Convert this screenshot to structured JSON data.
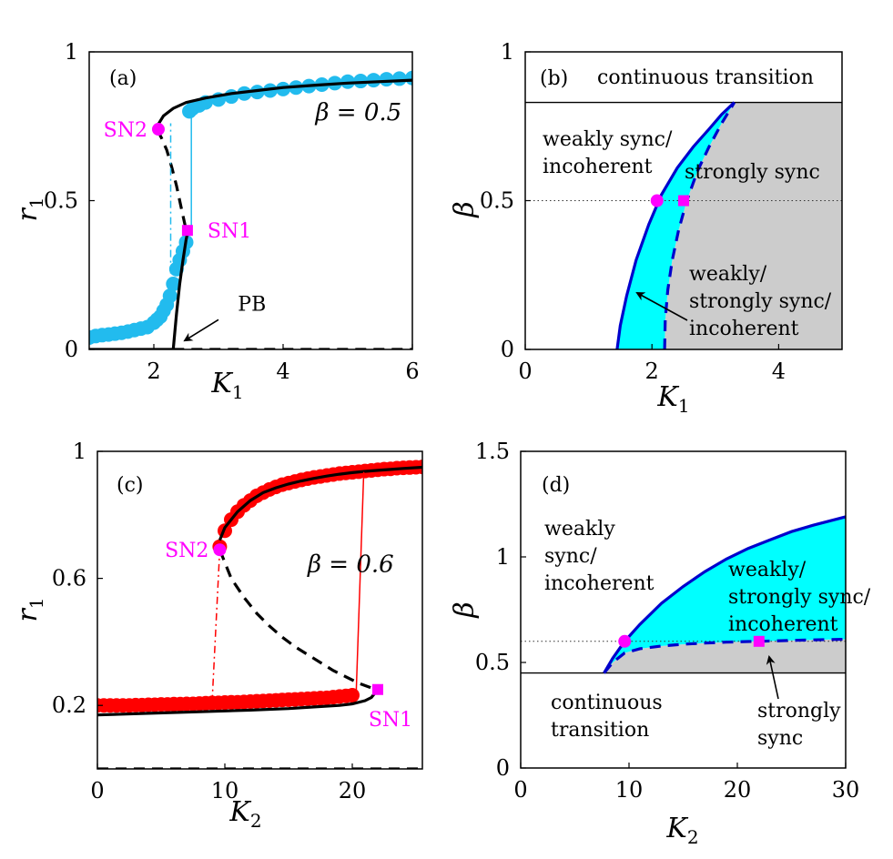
{
  "colors": {
    "cyan": "#22bbee",
    "cyan_fill": "#00ffff",
    "red": "#ff0000",
    "magenta": "#ff00ff",
    "blue": "#0000cc",
    "gray": "#cccccc",
    "black": "#000000"
  },
  "chart_data": [
    {
      "id": "a",
      "type": "line",
      "panel_label": "(a)",
      "xlabel": "K",
      "xlabel_sub": "1",
      "ylabel": "r",
      "ylabel_sub": "1",
      "xlim": [
        1,
        6
      ],
      "ylim": [
        0,
        1
      ],
      "xticks": [
        {
          "v": 2,
          "t": "2"
        },
        {
          "v": 4,
          "t": "4"
        },
        {
          "v": 6,
          "t": "6"
        }
      ],
      "yticks": [
        {
          "v": 0,
          "t": "0"
        },
        {
          "v": 0.5,
          "t": "0.5"
        },
        {
          "v": 1,
          "t": "1"
        }
      ],
      "annotation": "β = 0.5",
      "annotation_pos": [
        4.5,
        0.77
      ],
      "series": [
        {
          "name": "stable upper branch",
          "style": "solid",
          "x": [
            2.05,
            2.15,
            2.3,
            2.5,
            2.8,
            3.2,
            3.6,
            4.0,
            4.5,
            5.0,
            5.5,
            6.0
          ],
          "y": [
            0.75,
            0.785,
            0.81,
            0.83,
            0.845,
            0.86,
            0.87,
            0.88,
            0.888,
            0.895,
            0.9,
            0.905
          ]
        },
        {
          "name": "unstable middle branch",
          "style": "dashed",
          "x": [
            2.05,
            2.12,
            2.2,
            2.28,
            2.35,
            2.42,
            2.47,
            2.5
          ],
          "y": [
            0.74,
            0.71,
            0.67,
            0.61,
            0.55,
            0.48,
            0.43,
            0.4
          ]
        },
        {
          "name": "stable lower partial branch",
          "style": "solid",
          "x": [
            2.3,
            2.35,
            2.4,
            2.45,
            2.5,
            2.53,
            2.55
          ],
          "y": [
            0.0,
            0.12,
            0.22,
            0.3,
            0.37,
            0.4,
            0.4
          ]
        },
        {
          "name": "incoherent unstable",
          "style": "dashed",
          "x": [
            2.3,
            6.0
          ],
          "y": [
            0.0,
            0.0
          ]
        },
        {
          "name": "incoherent stable",
          "style": "solid",
          "x": [
            1.0,
            2.3
          ],
          "y": [
            0.0,
            0.0
          ]
        },
        {
          "name": "simulation forward",
          "style": "markers",
          "color": "cyan",
          "x": [
            1.0,
            1.1,
            1.2,
            1.3,
            1.4,
            1.5,
            1.6,
            1.7,
            1.8,
            1.9,
            2.0,
            2.05,
            2.1,
            2.15,
            2.2,
            2.25,
            2.3,
            2.35,
            2.4,
            2.45,
            2.5,
            2.55,
            2.6,
            2.7,
            2.8,
            3.0,
            3.2,
            3.4,
            3.6,
            3.8,
            4.0,
            4.2,
            4.4,
            4.6,
            4.8,
            5.0,
            5.2,
            5.4,
            5.6,
            5.8,
            6.0
          ],
          "y": [
            0.04,
            0.045,
            0.048,
            0.05,
            0.053,
            0.056,
            0.06,
            0.065,
            0.07,
            0.075,
            0.09,
            0.1,
            0.11,
            0.13,
            0.15,
            0.18,
            0.22,
            0.27,
            0.3,
            0.33,
            0.36,
            0.8,
            0.81,
            0.82,
            0.83,
            0.84,
            0.85,
            0.86,
            0.865,
            0.87,
            0.875,
            0.88,
            0.885,
            0.89,
            0.895,
            0.9,
            0.902,
            0.905,
            0.908,
            0.91,
            0.912
          ]
        },
        {
          "name": "forward jump",
          "style": "thin",
          "color": "cyan",
          "x": [
            2.58,
            2.58
          ],
          "y": [
            0.4,
            0.81
          ]
        },
        {
          "name": "backward jump",
          "style": "dashdot",
          "color": "cyan",
          "x": [
            2.26,
            2.26
          ],
          "y": [
            0.2,
            0.76
          ]
        }
      ],
      "points": [
        {
          "label": "SN2",
          "shape": "circle",
          "x": 2.07,
          "y": 0.74,
          "label_side": "left"
        },
        {
          "label": "SN1",
          "shape": "square",
          "x": 2.52,
          "y": 0.4,
          "label_side": "right"
        }
      ],
      "arrow_label": "PB",
      "arrow_label_pos": [
        3.3,
        0.13
      ],
      "arrow_from": [
        3.0,
        0.1
      ],
      "arrow_to": [
        2.48,
        0.03
      ]
    },
    {
      "id": "b",
      "type": "area",
      "panel_label": "(b)",
      "xlabel": "K",
      "xlabel_sub": "1",
      "ylabel": "β",
      "xlim": [
        0,
        5
      ],
      "ylim": [
        0,
        1
      ],
      "xticks": [
        {
          "v": 0,
          "t": "0"
        },
        {
          "v": 2,
          "t": "2"
        },
        {
          "v": 4,
          "t": "4"
        }
      ],
      "yticks": [
        {
          "v": 0,
          "t": "0"
        },
        {
          "v": 0.5,
          "t": "0.5"
        },
        {
          "v": 1,
          "t": "1"
        }
      ],
      "boundary_beta": 0.83,
      "solid_curve": {
        "x": [
          1.45,
          1.5,
          1.6,
          1.75,
          1.95,
          2.15,
          2.4,
          2.65,
          2.9,
          3.1,
          3.3
        ],
        "y": [
          0.0,
          0.08,
          0.18,
          0.3,
          0.42,
          0.52,
          0.61,
          0.68,
          0.74,
          0.79,
          0.83
        ]
      },
      "dashed_curve": {
        "x": [
          2.2,
          2.21,
          2.25,
          2.32,
          2.42,
          2.55,
          2.72,
          2.9,
          3.1,
          3.3
        ],
        "y": [
          0.0,
          0.1,
          0.2,
          0.3,
          0.4,
          0.5,
          0.6,
          0.68,
          0.76,
          0.83
        ]
      },
      "dotted_line_beta": 0.5,
      "points": [
        {
          "shape": "circle",
          "x": 2.08,
          "y": 0.5
        },
        {
          "shape": "square",
          "x": 2.5,
          "y": 0.5
        }
      ],
      "region_labels": {
        "top": "continuous transition",
        "left_1": "weakly sync/",
        "left_2": "incoherent",
        "right": "strongly sync",
        "mid_1": "weakly/",
        "mid_2": "strongly sync/",
        "mid_3": "incoherent"
      }
    },
    {
      "id": "c",
      "type": "line",
      "panel_label": "(c)",
      "xlabel": "K",
      "xlabel_sub": "2",
      "ylabel": "r",
      "ylabel_sub": "1",
      "xlim": [
        0,
        25.5
      ],
      "ylim": [
        0,
        1
      ],
      "xticks": [
        {
          "v": 0,
          "t": "0"
        },
        {
          "v": 10,
          "t": "10"
        },
        {
          "v": 20,
          "t": "20"
        }
      ],
      "yticks": [
        {
          "v": 0.2,
          "t": "0.2"
        },
        {
          "v": 0.6,
          "t": "0.6"
        },
        {
          "v": 1,
          "t": "1"
        }
      ],
      "annotation": "β = 0.6",
      "annotation_pos": [
        16.5,
        0.62
      ],
      "series": [
        {
          "name": "stable upper branch",
          "style": "solid",
          "x": [
            9.6,
            10,
            11,
            12,
            13,
            14,
            15,
            16,
            17,
            18,
            19,
            20,
            21,
            22,
            23,
            24,
            25.5
          ],
          "y": [
            0.72,
            0.76,
            0.81,
            0.845,
            0.87,
            0.885,
            0.897,
            0.907,
            0.915,
            0.922,
            0.928,
            0.933,
            0.937,
            0.94,
            0.943,
            0.946,
            0.95
          ]
        },
        {
          "name": "unstable middle branch",
          "style": "dashed",
          "x": [
            9.6,
            10.5,
            11.5,
            12.5,
            13.5,
            14.5,
            15.5,
            16.5,
            17.5,
            18.5,
            19.5,
            20.5,
            21.5,
            22.0
          ],
          "y": [
            0.69,
            0.6,
            0.54,
            0.49,
            0.45,
            0.415,
            0.385,
            0.36,
            0.335,
            0.31,
            0.29,
            0.27,
            0.255,
            0.25
          ]
        },
        {
          "name": "stable lower branch",
          "style": "solid",
          "x": [
            0,
            4,
            8,
            12,
            15,
            17,
            19,
            20,
            21,
            21.5,
            22.0
          ],
          "y": [
            0.17,
            0.175,
            0.18,
            0.185,
            0.19,
            0.195,
            0.2,
            0.205,
            0.215,
            0.225,
            0.25
          ]
        },
        {
          "name": "incoherent",
          "style": "dashed",
          "x": [
            0,
            25.5
          ],
          "y": [
            0.0,
            0.0
          ]
        },
        {
          "name": "simulation lower",
          "style": "markers",
          "color": "red",
          "x": [
            0,
            0.5,
            1,
            1.5,
            2,
            2.5,
            3,
            3.5,
            4,
            4.5,
            5,
            5.5,
            6,
            6.5,
            7,
            7.5,
            8,
            8.5,
            9,
            9.5,
            10,
            10.5,
            11,
            11.5,
            12,
            12.5,
            13,
            13.5,
            14,
            14.5,
            15,
            15.5,
            16,
            16.5,
            17,
            17.5,
            18,
            18.5,
            19,
            19.5,
            20
          ],
          "y": [
            0.2,
            0.2,
            0.2,
            0.2,
            0.2,
            0.2,
            0.201,
            0.201,
            0.202,
            0.202,
            0.203,
            0.203,
            0.204,
            0.204,
            0.205,
            0.205,
            0.206,
            0.207,
            0.208,
            0.208,
            0.209,
            0.21,
            0.21,
            0.211,
            0.212,
            0.213,
            0.214,
            0.215,
            0.216,
            0.217,
            0.218,
            0.219,
            0.22,
            0.221,
            0.222,
            0.223,
            0.224,
            0.226,
            0.228,
            0.23,
            0.232
          ]
        },
        {
          "name": "simulation upper",
          "style": "markers",
          "color": "red",
          "x": [
            9.6,
            10,
            10.5,
            11,
            11.5,
            12,
            12.5,
            13,
            13.5,
            14,
            14.5,
            15,
            15.5,
            16,
            16.5,
            17,
            17.5,
            18,
            18.5,
            19,
            19.5,
            20,
            20.5,
            21,
            21.5,
            22,
            22.5,
            23,
            23.5,
            24,
            24.5,
            25,
            25.5
          ],
          "y": [
            0.7,
            0.75,
            0.785,
            0.81,
            0.83,
            0.845,
            0.86,
            0.87,
            0.88,
            0.888,
            0.895,
            0.9,
            0.905,
            0.91,
            0.914,
            0.918,
            0.921,
            0.924,
            0.927,
            0.93,
            0.932,
            0.934,
            0.936,
            0.938,
            0.94,
            0.942,
            0.944,
            0.945,
            0.947,
            0.948,
            0.949,
            0.95,
            0.951
          ]
        },
        {
          "name": "forward jump",
          "style": "thin",
          "color": "red",
          "x": [
            20.3,
            20.9
          ],
          "y": [
            0.232,
            0.935
          ]
        },
        {
          "name": "backward jump",
          "style": "dashdot",
          "color": "red",
          "x": [
            9.0,
            9.6
          ],
          "y": [
            0.21,
            0.69
          ]
        }
      ],
      "points": [
        {
          "label": "SN2",
          "shape": "circle",
          "x": 9.6,
          "y": 0.69,
          "label_side": "left"
        },
        {
          "label": "SN1",
          "shape": "square",
          "x": 22.0,
          "y": 0.25,
          "label_side": "below"
        }
      ]
    },
    {
      "id": "d",
      "type": "area",
      "panel_label": "(d)",
      "xlabel": "K",
      "xlabel_sub": "2",
      "ylabel": "β",
      "xlim": [
        0,
        30
      ],
      "ylim": [
        0,
        1.5
      ],
      "xticks": [
        {
          "v": 0,
          "t": "0"
        },
        {
          "v": 10,
          "t": "10"
        },
        {
          "v": 20,
          "t": "20"
        },
        {
          "v": 30,
          "t": "30"
        }
      ],
      "yticks": [
        {
          "v": 0,
          "t": "0"
        },
        {
          "v": 0.5,
          "t": "0.5"
        },
        {
          "v": 1,
          "t": "1"
        },
        {
          "v": 1.5,
          "t": "1.5"
        }
      ],
      "boundary_beta": 0.45,
      "solid_curve": {
        "x": [
          7.7,
          8.5,
          9.6,
          11,
          13,
          15,
          17,
          19,
          21,
          23,
          25,
          27,
          30
        ],
        "y": [
          0.45,
          0.52,
          0.6,
          0.68,
          0.78,
          0.86,
          0.93,
          0.99,
          1.04,
          1.08,
          1.12,
          1.15,
          1.19
        ]
      },
      "dashed_curve": {
        "x": [
          7.7,
          8.5,
          9.6,
          11,
          13,
          15,
          17,
          19,
          21,
          22,
          24,
          27,
          30
        ],
        "y": [
          0.45,
          0.5,
          0.545,
          0.565,
          0.578,
          0.586,
          0.592,
          0.596,
          0.599,
          0.6,
          0.603,
          0.607,
          0.61
        ]
      },
      "dotted_line_beta": 0.6,
      "points": [
        {
          "shape": "circle",
          "x": 9.6,
          "y": 0.6
        },
        {
          "shape": "square",
          "x": 22.0,
          "y": 0.6
        }
      ],
      "region_labels": {
        "left_1": "weakly",
        "left_2": "sync/",
        "left_3": "incoherent",
        "mid_1": "weakly/",
        "mid_2": "strongly sync/",
        "mid_3": "incoherent",
        "bottom_1": "continuous",
        "bottom_2": "transition",
        "right_1": "strongly",
        "right_2": "sync"
      }
    }
  ]
}
